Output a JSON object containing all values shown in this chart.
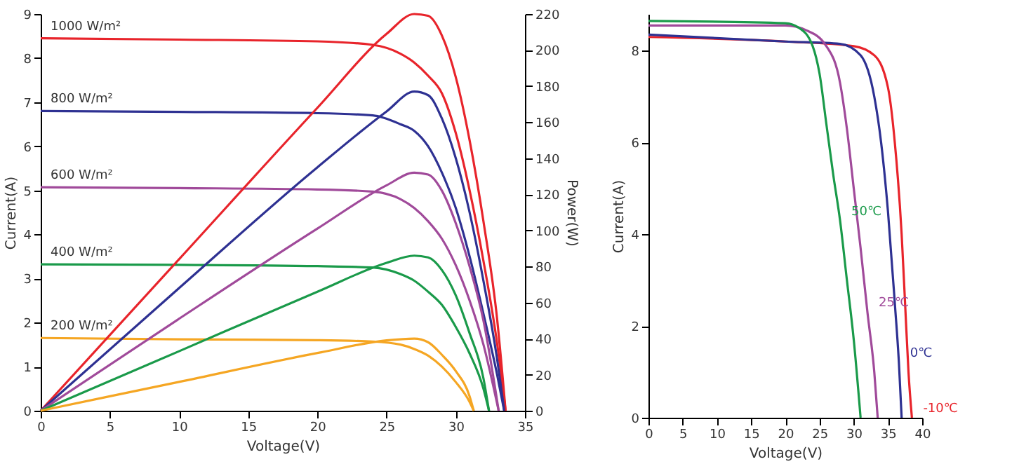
{
  "chart_data": [
    {
      "type": "line",
      "xlabel": "Voltage(V)",
      "ylabel": "Current(A)",
      "y2label": "Power(W)",
      "xlim": [
        0,
        35
      ],
      "xticks": [
        0,
        5,
        10,
        15,
        20,
        25,
        30,
        35
      ],
      "ylim": [
        0,
        9
      ],
      "yticks": [
        0,
        1,
        2,
        3,
        4,
        5,
        6,
        7,
        8,
        9
      ],
      "y2lim": [
        0,
        220
      ],
      "y2ticks": [
        0,
        20,
        40,
        60,
        80,
        100,
        120,
        140,
        160,
        180,
        200,
        220
      ],
      "grid": false,
      "legend": false,
      "line_style": "solid",
      "marker": "none",
      "series": [
        {
          "name": "1000 W/m²",
          "color": "#e8242b",
          "x": [
            0,
            10,
            20,
            24,
            26,
            27,
            28,
            29,
            30,
            31,
            32,
            33,
            33.6
          ],
          "values": [
            8.45,
            8.42,
            8.38,
            8.3,
            8.1,
            7.9,
            7.6,
            7.2,
            6.3,
            5.0,
            3.4,
            1.5,
            0
          ]
        },
        {
          "color": "#e8242b",
          "axis": "y2",
          "x": [
            0,
            10,
            20,
            25,
            27,
            28,
            29,
            30,
            31,
            32,
            33,
            33.6
          ],
          "values": [
            0,
            84,
            168,
            209,
            220,
            219,
            208,
            185,
            150,
            105,
            50,
            0
          ]
        },
        {
          "name": "800 W/m²",
          "color": "#2e3192",
          "x": [
            0,
            10,
            20,
            24,
            26,
            27,
            28,
            29,
            30,
            31,
            32,
            33,
            33.5
          ],
          "values": [
            6.8,
            6.78,
            6.75,
            6.7,
            6.5,
            6.35,
            6.0,
            5.4,
            4.6,
            3.5,
            2.2,
            0.8,
            0
          ]
        },
        {
          "color": "#2e3192",
          "axis": "y2",
          "x": [
            0,
            10,
            20,
            25,
            27,
            28,
            29,
            30,
            31,
            32,
            33,
            33.5
          ],
          "values": [
            0,
            68,
            135,
            166,
            177,
            175,
            162,
            140,
            110,
            72,
            28,
            0
          ]
        },
        {
          "name": "600 W/m²",
          "color": "#a04a9a",
          "x": [
            0,
            10,
            20,
            24,
            26,
            27,
            28,
            29,
            30,
            31,
            32,
            33.1
          ],
          "values": [
            5.07,
            5.05,
            5.02,
            4.97,
            4.8,
            4.6,
            4.3,
            3.9,
            3.3,
            2.5,
            1.5,
            0
          ]
        },
        {
          "color": "#a04a9a",
          "axis": "y2",
          "x": [
            0,
            10,
            20,
            25,
            27,
            28,
            29,
            30,
            31,
            32,
            33.1
          ],
          "values": [
            0,
            51,
            101,
            125,
            132,
            131,
            122,
            104,
            80,
            50,
            0
          ]
        },
        {
          "name": "400 W/m²",
          "color": "#1a9a4a",
          "x": [
            0,
            10,
            20,
            24,
            26,
            27,
            28,
            29,
            30,
            31,
            32,
            32.4
          ],
          "values": [
            3.32,
            3.31,
            3.28,
            3.25,
            3.1,
            2.95,
            2.7,
            2.4,
            1.9,
            1.3,
            0.5,
            0
          ]
        },
        {
          "color": "#1a9a4a",
          "axis": "y2",
          "x": [
            0,
            10,
            20,
            25,
            27,
            28,
            29,
            30,
            31,
            32,
            32.4
          ],
          "values": [
            0,
            33,
            66,
            82,
            86,
            85,
            78,
            64,
            43,
            18,
            0
          ]
        },
        {
          "name": "200 W/m²",
          "color": "#f5a623",
          "x": [
            0,
            10,
            20,
            24,
            26,
            27,
            28,
            29,
            30,
            31,
            31.3
          ],
          "values": [
            1.65,
            1.62,
            1.6,
            1.57,
            1.5,
            1.4,
            1.25,
            1.0,
            0.65,
            0.2,
            0
          ]
        },
        {
          "color": "#f5a623",
          "axis": "y2",
          "x": [
            0,
            10,
            20,
            25,
            27,
            28,
            29,
            30,
            31,
            31.3
          ],
          "values": [
            0,
            16,
            32,
            39,
            40,
            38,
            31,
            22,
            8,
            0
          ]
        }
      ]
    },
    {
      "type": "line",
      "xlabel": "Voltage(V)",
      "ylabel": "Current(A)",
      "xlim": [
        0,
        40
      ],
      "xticks": [
        0,
        5,
        10,
        15,
        20,
        25,
        30,
        35,
        40
      ],
      "ylim": [
        0,
        8.8
      ],
      "yticks": [
        0,
        2,
        4,
        6,
        8
      ],
      "grid": false,
      "legend": false,
      "line_style": "solid",
      "marker": "none",
      "series": [
        {
          "name": "-10℃",
          "color": "#e8242b",
          "x": [
            0,
            20,
            30,
            33,
            35,
            36,
            37,
            37.5,
            38,
            38.5
          ],
          "values": [
            8.3,
            8.2,
            8.1,
            7.9,
            7.2,
            6.0,
            4.0,
            2.5,
            1.0,
            0
          ]
        },
        {
          "name": "0℃",
          "color": "#2e3192",
          "x": [
            0,
            20,
            28,
            31,
            33,
            34,
            35,
            36,
            36.6,
            37
          ],
          "values": [
            8.35,
            8.2,
            8.15,
            7.9,
            7.0,
            6.0,
            4.5,
            2.5,
            1.2,
            0
          ]
        },
        {
          "name": "25℃",
          "color": "#a04a9a",
          "x": [
            0,
            20,
            23,
            26,
            28,
            29,
            30,
            31,
            32,
            33,
            33.5
          ],
          "values": [
            8.55,
            8.55,
            8.45,
            8.1,
            7.3,
            6.3,
            5.0,
            3.7,
            2.3,
            1.0,
            0
          ]
        },
        {
          "name": "50℃",
          "color": "#1a9a4a",
          "x": [
            0,
            20,
            22,
            24,
            25,
            26,
            27,
            28,
            29,
            30,
            31
          ],
          "values": [
            8.65,
            8.6,
            8.5,
            8.1,
            7.5,
            6.4,
            5.3,
            4.3,
            3.0,
            1.7,
            0
          ]
        }
      ]
    }
  ]
}
